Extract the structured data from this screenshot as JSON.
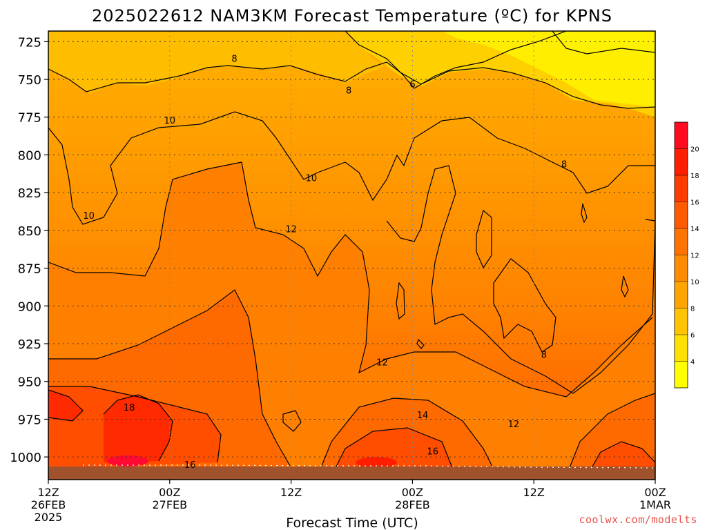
{
  "chart_data": {
    "type": "heatmap",
    "title": "2025022612 NAM3KM Forecast Temperature (ºC) for KPNS",
    "xlabel": "Forecast Time (UTC)",
    "ylabel": "",
    "y_axis": {
      "units": "hPa",
      "direction": "pressure-decreasing-upward",
      "ylim": [
        1015,
        718
      ],
      "ticks": [
        725,
        750,
        775,
        800,
        825,
        850,
        875,
        900,
        925,
        950,
        975,
        1000
      ]
    },
    "x_axis": {
      "xlim_hours": [
        0,
        60
      ],
      "ticks": [
        {
          "hour": 0,
          "labels": [
            "12Z",
            "26FEB",
            "2025"
          ]
        },
        {
          "hour": 12,
          "labels": [
            "00Z",
            "27FEB"
          ]
        },
        {
          "hour": 24,
          "labels": [
            "12Z"
          ]
        },
        {
          "hour": 36,
          "labels": [
            "00Z",
            "28FEB"
          ]
        },
        {
          "hour": 48,
          "labels": [
            "12Z"
          ]
        },
        {
          "hour": 60,
          "labels": [
            "00Z",
            "1MAR"
          ]
        }
      ]
    },
    "grid": true,
    "colorbar": {
      "placement": "right",
      "levels": [
        2,
        4,
        6,
        8,
        10,
        12,
        14,
        16,
        18,
        20,
        22
      ],
      "labels": [
        "4",
        "6",
        "8",
        "10",
        "12",
        "14",
        "16",
        "18",
        "20"
      ],
      "colors": [
        "#ffff00",
        "#ffe100",
        "#ffc300",
        "#ffa500",
        "#ff8c00",
        "#ff7300",
        "#ff5a00",
        "#ff3c00",
        "#ff1e00",
        "#ff0a1e"
      ]
    },
    "contour_labels": [
      {
        "hour": 18.4,
        "p": 736,
        "value": "8"
      },
      {
        "hour": 36.0,
        "p": 753,
        "value": "6"
      },
      {
        "hour": 29.7,
        "p": 757,
        "value": "8"
      },
      {
        "hour": 12.0,
        "p": 777,
        "value": "10"
      },
      {
        "hour": 51.0,
        "p": 806,
        "value": "8"
      },
      {
        "hour": 26.0,
        "p": 815,
        "value": "10"
      },
      {
        "hour": 4.0,
        "p": 840,
        "value": "10"
      },
      {
        "hour": 24.0,
        "p": 849,
        "value": "12"
      },
      {
        "hour": 33.0,
        "p": 937,
        "value": "12"
      },
      {
        "hour": 49.0,
        "p": 932,
        "value": "8"
      },
      {
        "hour": 8.0,
        "p": 967,
        "value": "18"
      },
      {
        "hour": 37.0,
        "p": 972,
        "value": "14"
      },
      {
        "hour": 46.0,
        "p": 978,
        "value": "12"
      },
      {
        "hour": 38.0,
        "p": 996,
        "value": "16"
      },
      {
        "hour": 14.0,
        "p": 1005,
        "value": "16"
      }
    ],
    "sample_temperatures": [
      {
        "p": 725,
        "hours": [
          0,
          12,
          24,
          36,
          48,
          60
        ],
        "values": [
          7.0,
          7.3,
          6.8,
          6.0,
          5.0,
          4.0
        ]
      },
      {
        "p": 775,
        "hours": [
          0,
          12,
          24,
          36,
          48,
          60
        ],
        "values": [
          9.0,
          9.7,
          9.0,
          8.2,
          7.5,
          7.0
        ]
      },
      {
        "p": 850,
        "hours": [
          0,
          12,
          24,
          36,
          48,
          60
        ],
        "values": [
          10.5,
          12.5,
          12.0,
          10.5,
          9.0,
          10.0
        ]
      },
      {
        "p": 925,
        "hours": [
          0,
          12,
          24,
          36,
          48,
          60
        ],
        "values": [
          12.2,
          13.5,
          13.0,
          11.5,
          9.5,
          10.5
        ]
      },
      {
        "p": 975,
        "hours": [
          0,
          12,
          24,
          36,
          48,
          60
        ],
        "values": [
          17.5,
          16.0,
          13.0,
          14.5,
          12.0,
          15.0
        ]
      },
      {
        "p": 1010,
        "hours": [
          0,
          12,
          24,
          36,
          48,
          60
        ],
        "values": [
          19.0,
          16.5,
          13.5,
          17.0,
          13.0,
          16.0
        ]
      }
    ]
  },
  "credit": "coolwx.com/modelts"
}
